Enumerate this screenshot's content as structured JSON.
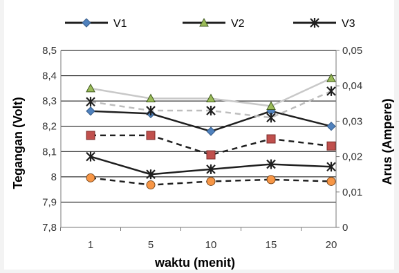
{
  "chart_data": {
    "type": "line",
    "x_categories": [
      "1",
      "5",
      "10",
      "15",
      "20"
    ],
    "xlabel": "waktu (menit)",
    "y_left": {
      "label": "Tegangan (Volt)",
      "ylim": [
        7.8,
        8.5
      ],
      "ticks": [
        "7,8",
        "7,9",
        "8",
        "8,1",
        "8,2",
        "8,3",
        "8,4",
        "8,5"
      ]
    },
    "y_right": {
      "label": "Arus (Ampere)",
      "ylim": [
        0,
        0.05
      ],
      "ticks": [
        "0",
        "0,01",
        "0,02",
        "0,03",
        "0,04",
        "0,05"
      ]
    },
    "legend_position": "top",
    "legend": [
      {
        "name": "V1",
        "color": "#1f1f1f",
        "marker": "diamond",
        "marker_color": "#4f81bd"
      },
      {
        "name": "V2",
        "color": "#1f1f1f",
        "marker": "triangle",
        "marker_color": "#9bbb59"
      },
      {
        "name": "V3",
        "color": "#1f1f1f",
        "marker": "star",
        "marker_color": "#1f1f1f"
      }
    ],
    "series": [
      {
        "legend": "V1",
        "axis": "left",
        "values": [
          8.26,
          8.25,
          8.18,
          8.26,
          8.2
        ],
        "line_color": "#1f1f1f",
        "dash": "solid",
        "marker": "diamond",
        "marker_color": "#4f81bd"
      },
      {
        "legend": "V2",
        "axis": "left",
        "values": [
          8.35,
          8.31,
          8.31,
          8.28,
          8.39
        ],
        "line_color": "#c8c8c8",
        "dash": "solid",
        "marker": "triangle",
        "marker_color": "#9bbb59"
      },
      {
        "legend": "V3",
        "axis": "left",
        "values": [
          8.08,
          8.01,
          8.03,
          8.05,
          8.04
        ],
        "line_color": "#1f1f1f",
        "dash": "solid",
        "marker": "star",
        "marker_color": "#1f1f1f"
      },
      {
        "axis": "right",
        "values": [
          0.026,
          0.026,
          0.0205,
          0.025,
          0.023
        ],
        "line_color": "#1f1f1f",
        "dash": "dashed",
        "marker": "square",
        "marker_color": "#c0504d"
      },
      {
        "axis": "right",
        "values": [
          0.0355,
          0.033,
          0.033,
          0.031,
          0.0385
        ],
        "line_color": "#bdbdbd",
        "dash": "dashed",
        "marker": "star",
        "marker_color": "#1f1f1f"
      },
      {
        "axis": "right",
        "values": [
          0.014,
          0.012,
          0.013,
          0.0135,
          0.013
        ],
        "line_color": "#1f1f1f",
        "dash": "dashed",
        "marker": "circle",
        "marker_color": "#f79646"
      }
    ],
    "grid": "horizontal"
  }
}
